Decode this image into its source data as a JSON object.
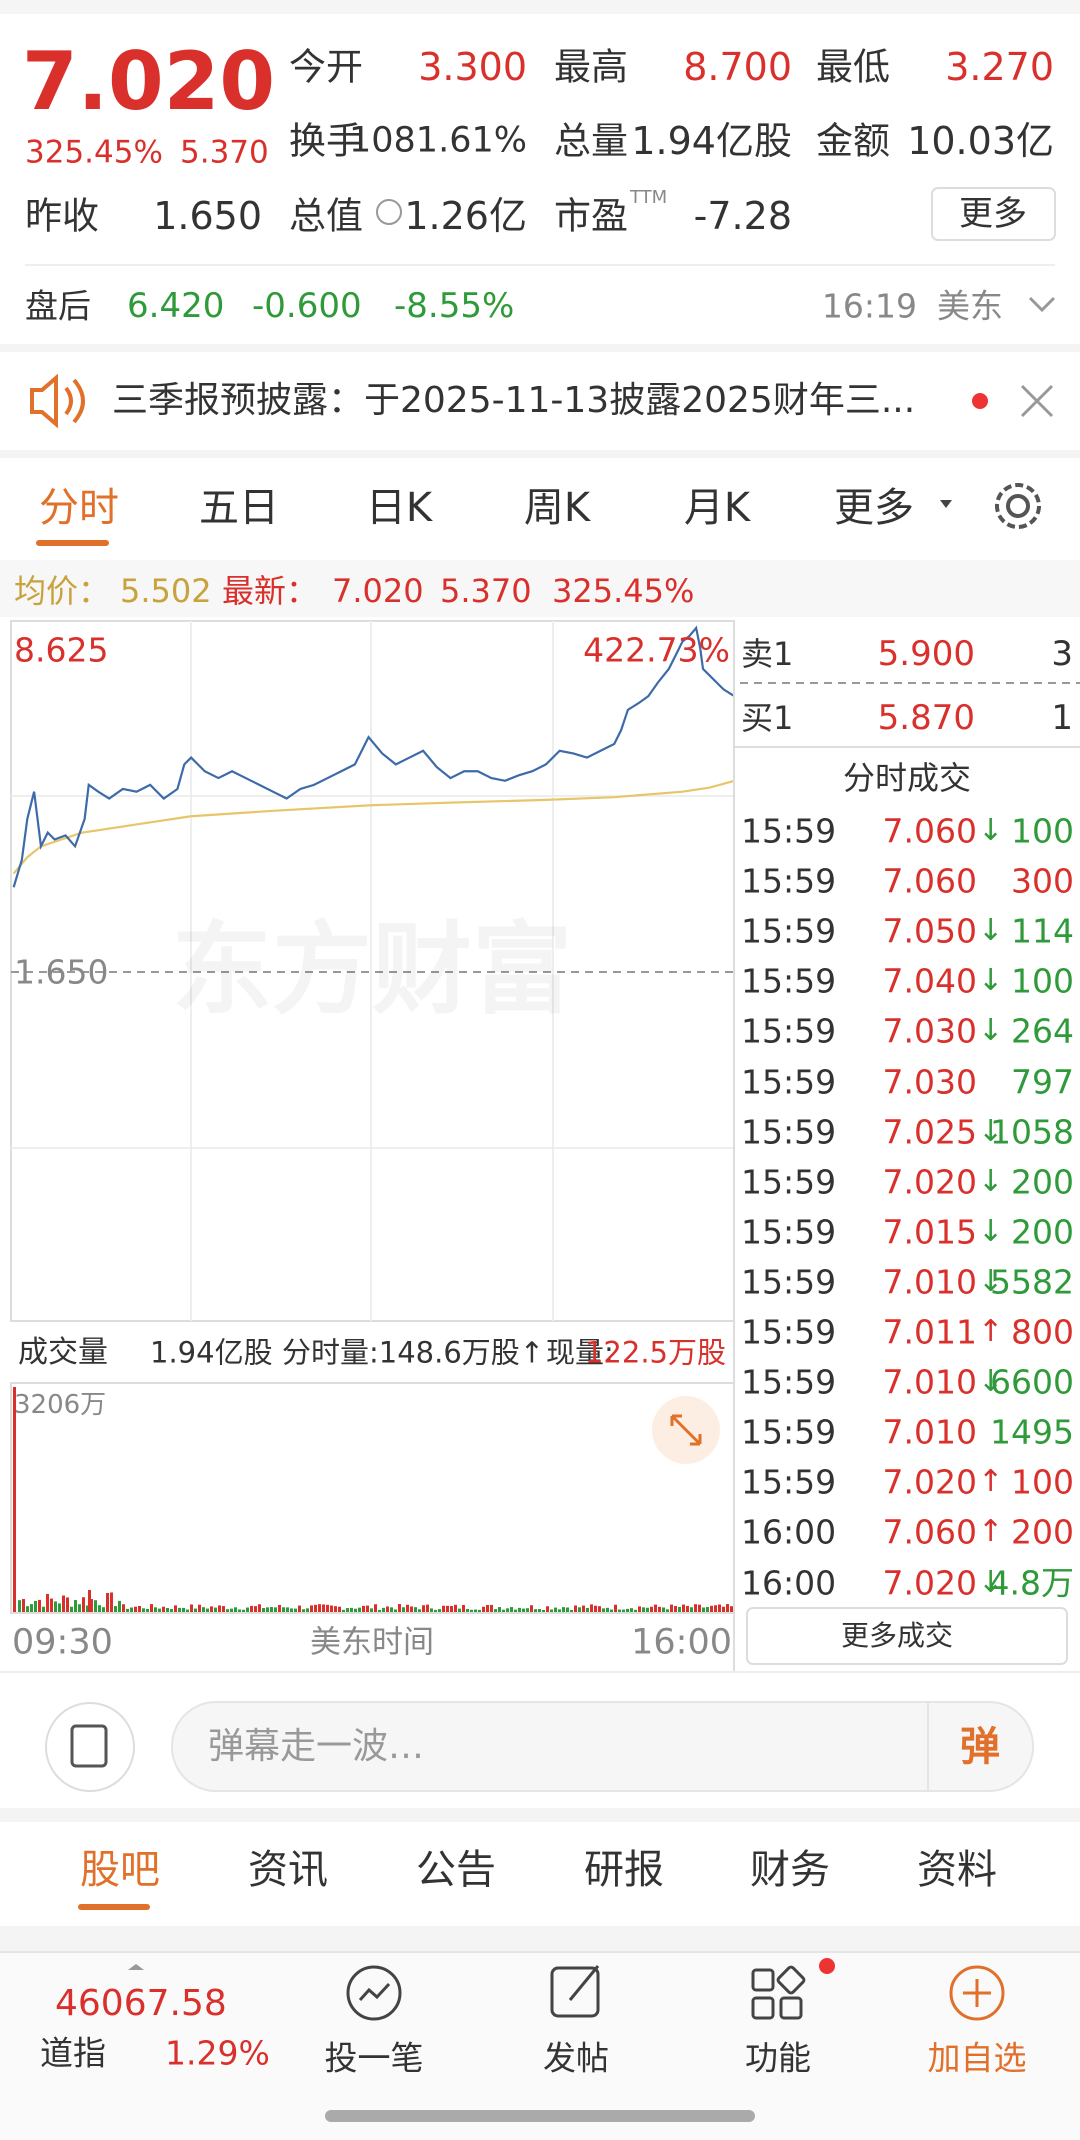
{
  "header": {
    "price": "7.020",
    "change_pct": "325.45%",
    "change": "5.370",
    "stats": [
      {
        "label": "今开",
        "value": "3.300"
      },
      {
        "label": "最高",
        "value": "8.700"
      },
      {
        "label": "最低",
        "value": "3.270"
      },
      {
        "label": "换手",
        "value": "1081.61%"
      },
      {
        "label": "总量",
        "value": "1.94亿股"
      },
      {
        "label": "金额",
        "value": "10.03亿"
      },
      {
        "label": "昨收",
        "value": "1.650"
      },
      {
        "label": "总值",
        "value": "1.26亿"
      },
      {
        "label": "市盈",
        "sup": "TTM",
        "value": "-7.28"
      }
    ],
    "more_button": "更多"
  },
  "after_hours": {
    "label": "盘后",
    "price": "6.420",
    "change": "-0.600",
    "change_pct": "-8.55%",
    "time": "16:19",
    "market": "美东"
  },
  "notice": {
    "text": "三季报预披露：于2025-11-13披露2025财年三..."
  },
  "tabs": [
    "分时",
    "五日",
    "日K",
    "周K",
    "月K",
    "更多"
  ],
  "quote_line": {
    "avg_label": "均价：",
    "avg": "5.502",
    "last_label": "最新：",
    "last": "7.020",
    "change": "5.370",
    "change_pct": "325.45%"
  },
  "chart": {
    "high": "8.625",
    "high_pct": "422.73%",
    "prev_close": "1.650",
    "watermark": "东方财富",
    "volume_label": "成交量",
    "volume": "1.94亿股",
    "interval_volume": "分时量:148.6万股↑",
    "current_label": "现量:",
    "current": "122.5万股",
    "vol_max": "3206万",
    "start": "09:30",
    "axis_label": "美东时间",
    "end": "16:00"
  },
  "order_book": {
    "asks": [
      {
        "label": "卖1",
        "price": "5.900",
        "vol": "3"
      }
    ],
    "bids": [
      {
        "label": "买1",
        "price": "5.870",
        "vol": "1"
      }
    ],
    "trades_title": "分时成交",
    "trades": [
      {
        "time": "15:59",
        "price": "7.060",
        "arrow": "↓",
        "vol": "100",
        "color": "green"
      },
      {
        "time": "15:59",
        "price": "7.060",
        "vol": "300",
        "color": "red"
      },
      {
        "time": "15:59",
        "price": "7.050",
        "arrow": "↓",
        "vol": "114",
        "color": "green"
      },
      {
        "time": "15:59",
        "price": "7.040",
        "arrow": "↓",
        "vol": "100",
        "color": "green"
      },
      {
        "time": "15:59",
        "price": "7.030",
        "arrow": "↓",
        "vol": "264",
        "color": "green"
      },
      {
        "time": "15:59",
        "price": "7.030",
        "vol": "797",
        "color": "green"
      },
      {
        "time": "15:59",
        "price": "7.025",
        "arrow": "↓",
        "vol": "1058",
        "color": "green"
      },
      {
        "time": "15:59",
        "price": "7.020",
        "arrow": "↓",
        "vol": "200",
        "color": "green"
      },
      {
        "time": "15:59",
        "price": "7.015",
        "arrow": "↓",
        "vol": "200",
        "color": "green"
      },
      {
        "time": "15:59",
        "price": "7.010",
        "arrow": "↓",
        "vol": "5582",
        "color": "green"
      },
      {
        "time": "15:59",
        "price": "7.011",
        "arrow": "↑",
        "vol": "800",
        "color": "red"
      },
      {
        "time": "15:59",
        "price": "7.010",
        "arrow": "↓",
        "vol": "6600",
        "color": "green"
      },
      {
        "time": "15:59",
        "price": "7.010",
        "vol": "1495",
        "color": "green"
      },
      {
        "time": "15:59",
        "price": "7.020",
        "arrow": "↑",
        "vol": "100",
        "color": "red"
      },
      {
        "time": "16:00",
        "price": "7.060",
        "arrow": "↑",
        "vol": "200",
        "color": "red"
      },
      {
        "time": "16:00",
        "price": "7.020",
        "arrow": "↓",
        "vol": "4.8万",
        "color": "green"
      }
    ],
    "more": "更多成交"
  },
  "comment": {
    "placeholder": "弹幕走一波…",
    "send": "弹"
  },
  "sections": [
    "股吧",
    "资讯",
    "公告",
    "研报",
    "财务",
    "资料"
  ],
  "bottom": {
    "index_value": "46067.58",
    "index_name": "道指",
    "index_pct": "1.29%",
    "nav": [
      "投一笔",
      "发帖",
      "功能",
      "加自选"
    ]
  }
}
